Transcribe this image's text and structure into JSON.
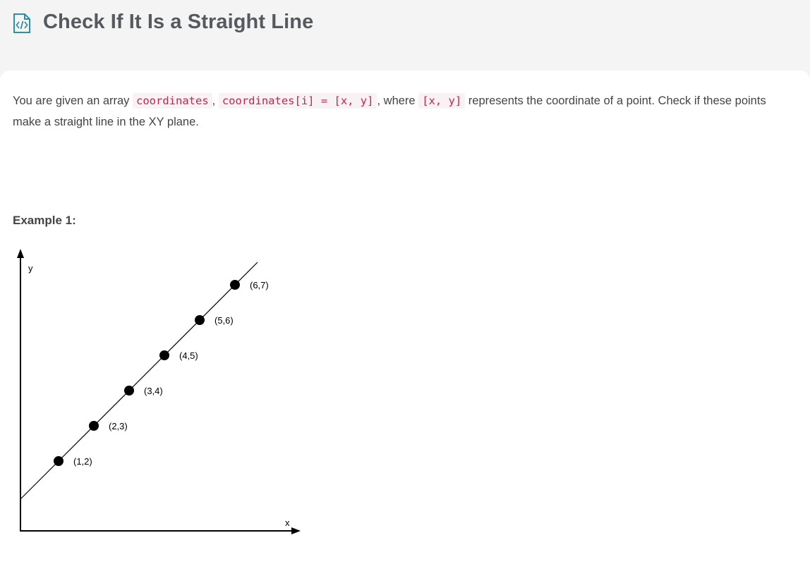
{
  "page": {
    "title": "Check If It Is a Straight Line",
    "title_icon": "code-document-icon"
  },
  "description": {
    "t1": "You are given an array ",
    "c1": "coordinates",
    "t2": ", ",
    "c2": "coordinates[i] = [x, y]",
    "t3": ", where ",
    "c3": "[x, y]",
    "t4": " represents the coordinate of a point. Check if these points make a straight line in the XY plane."
  },
  "example": {
    "title": "Example 1:"
  },
  "colors": {
    "code_text": "#c7254e",
    "code_bg": "#f9f2f4",
    "title_text": "#555a5e",
    "icon": "#2f8fa3"
  },
  "chart_data": {
    "type": "scatter",
    "xlabel": "x",
    "ylabel": "y",
    "points": [
      {
        "x": 1,
        "y": 2,
        "label": "(1,2)"
      },
      {
        "x": 2,
        "y": 3,
        "label": "(2,3)"
      },
      {
        "x": 3,
        "y": 4,
        "label": "(3,4)"
      },
      {
        "x": 4,
        "y": 5,
        "label": "(4,5)"
      },
      {
        "x": 5,
        "y": 6,
        "label": "(5,6)"
      },
      {
        "x": 6,
        "y": 7,
        "label": "(6,7)"
      }
    ],
    "line": {
      "slope": 1,
      "intercept": 1
    },
    "grid": false,
    "axis_ticks": false
  }
}
